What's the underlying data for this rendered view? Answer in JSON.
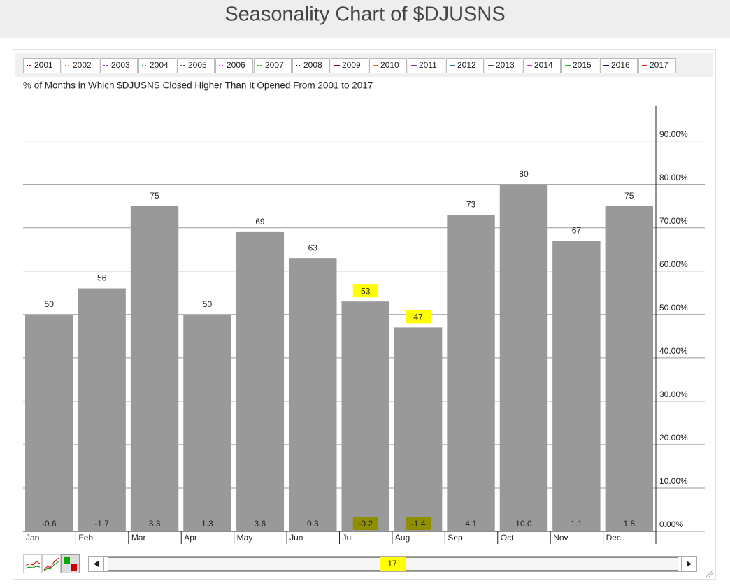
{
  "chart_data": {
    "type": "bar",
    "title": "Seasonality Chart of $DJUSNS",
    "subtitle": "% of Months in Which $DJUSNS Closed Higher Than It Opened From 2001 to 2017",
    "legend": [
      {
        "name": "2001",
        "color": "#8b0000",
        "style": "dotted"
      },
      {
        "name": "2002",
        "color": "#e07020",
        "style": "dotted"
      },
      {
        "name": "2003",
        "color": "#9020c0",
        "style": "dotted"
      },
      {
        "name": "2004",
        "color": "#108890",
        "style": "dotted"
      },
      {
        "name": "2005",
        "color": "#555555",
        "style": "dotted"
      },
      {
        "name": "2006",
        "color": "#e020e0",
        "style": "dotted"
      },
      {
        "name": "2007",
        "color": "#20c020",
        "style": "dotted"
      },
      {
        "name": "2008",
        "color": "#101080",
        "style": "dotted"
      },
      {
        "name": "2009",
        "color": "#8b0000",
        "style": "solid"
      },
      {
        "name": "2010",
        "color": "#e07020",
        "style": "solid"
      },
      {
        "name": "2011",
        "color": "#9020c0",
        "style": "solid"
      },
      {
        "name": "2012",
        "color": "#108890",
        "style": "solid"
      },
      {
        "name": "2013",
        "color": "#555555",
        "style": "solid"
      },
      {
        "name": "2014",
        "color": "#e020e0",
        "style": "solid"
      },
      {
        "name": "2015",
        "color": "#20c020",
        "style": "solid"
      },
      {
        "name": "2016",
        "color": "#101080",
        "style": "solid"
      },
      {
        "name": "2017",
        "color": "#e02020",
        "style": "solid"
      }
    ],
    "categories": [
      "Jan",
      "Feb",
      "Mar",
      "Apr",
      "May",
      "Jun",
      "Jul",
      "Aug",
      "Sep",
      "Oct",
      "Nov",
      "Dec"
    ],
    "values": [
      50,
      56,
      75,
      50,
      69,
      63,
      53,
      47,
      73,
      80,
      67,
      75
    ],
    "color": "#999999",
    "returns": {
      "values": [
        -0.6,
        -1.7,
        3.3,
        1.3,
        3.6,
        0.3,
        -0.2,
        -1.4,
        4.1,
        10.0,
        1.1,
        1.8
      ],
      "value_labels": [
        "-0.6",
        "-1.7",
        "3.3",
        "1.3",
        "3.6",
        "0.3",
        "-0.2",
        "-1.4",
        "4.1",
        "10.0",
        "1.1",
        "1.8"
      ]
    },
    "highlighted": [
      6,
      7
    ],
    "ylim": [
      0,
      98
    ],
    "yticks": [
      {
        "value": 0,
        "label": "0.00%"
      },
      {
        "value": 10,
        "label": "10.00%"
      },
      {
        "value": 20,
        "label": "20.00%"
      },
      {
        "value": 30,
        "label": "30.00%"
      },
      {
        "value": 40,
        "label": "40.00%"
      },
      {
        "value": 50,
        "label": "50.00%"
      },
      {
        "value": 60,
        "label": "60.00%"
      },
      {
        "value": 70,
        "label": "70.00%"
      },
      {
        "value": 80,
        "label": "80.00%"
      },
      {
        "value": 90,
        "label": "90.00%"
      }
    ],
    "grid": true,
    "scrollbar_value": 17
  }
}
